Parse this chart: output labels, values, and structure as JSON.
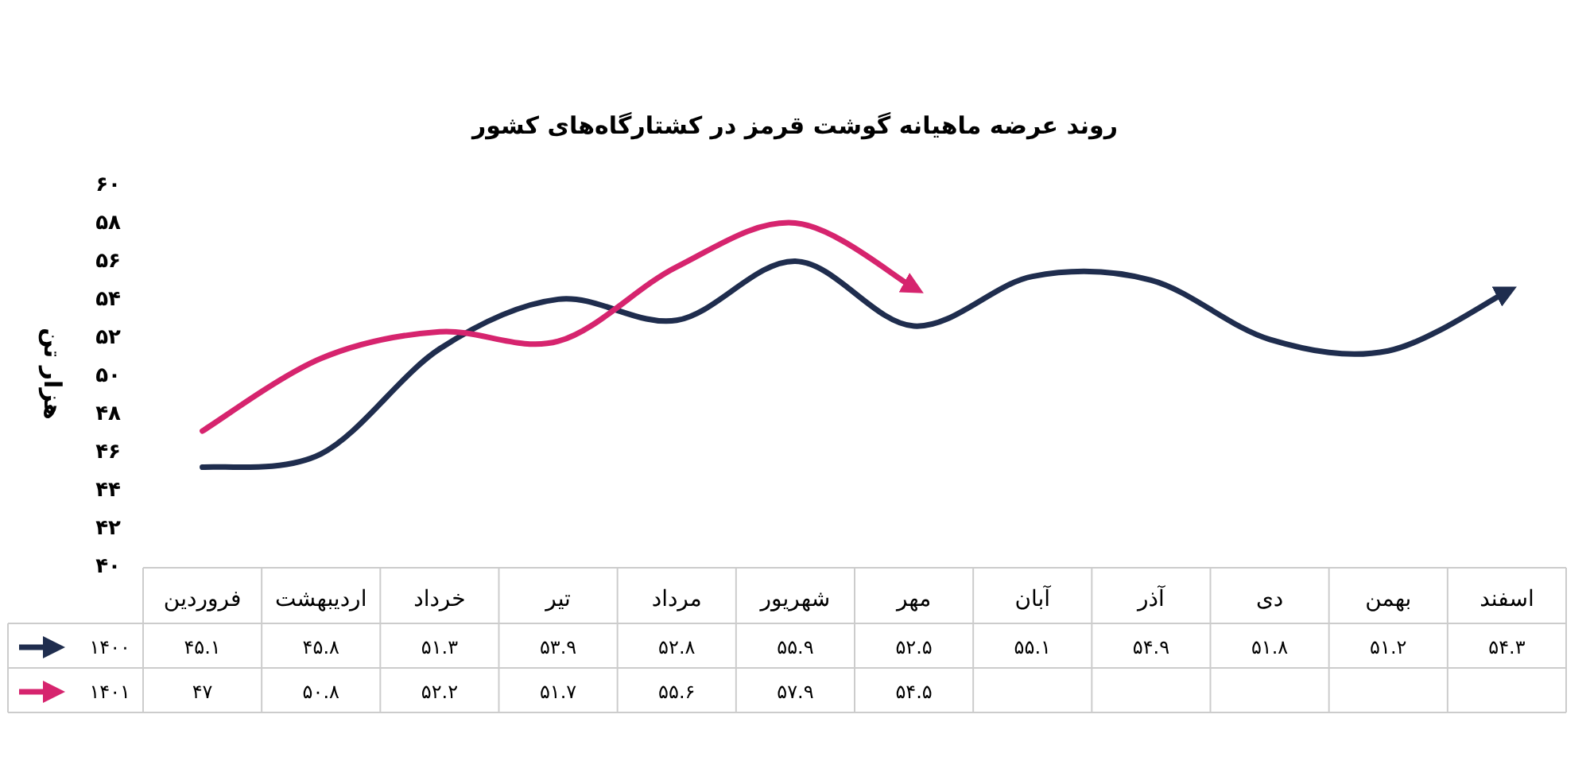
{
  "chart_data": {
    "type": "line",
    "title": "روند عرضه ماهیانه گوشت قرمز در کشتارگاه‌های کشور",
    "ylabel": "هزار تن",
    "categories": [
      "فروردین",
      "اردیبهشت",
      "خرداد",
      "تیر",
      "مرداد",
      "شهریور",
      "مهر",
      "آبان",
      "آذر",
      "دی",
      "بهمن",
      "اسفند"
    ],
    "series": [
      {
        "name": "۱۴۰۰",
        "color": "#1f2d4e",
        "values": [
          45.1,
          45.8,
          51.3,
          53.9,
          52.8,
          55.9,
          52.5,
          55.1,
          54.9,
          51.8,
          51.2,
          54.3
        ],
        "value_labels": [
          "۴۵.۱",
          "۴۵.۸",
          "۵۱.۳",
          "۵۳.۹",
          "۵۲.۸",
          "۵۵.۹",
          "۵۲.۵",
          "۵۵.۱",
          "۵۴.۹",
          "۵۱.۸",
          "۵۱.۲",
          "۵۴.۳"
        ]
      },
      {
        "name": "۱۴۰۱",
        "color": "#d6246e",
        "values": [
          47,
          50.8,
          52.2,
          51.7,
          55.6,
          57.9,
          54.5,
          null,
          null,
          null,
          null,
          null
        ],
        "value_labels": [
          "۴۷",
          "۵۰.۸",
          "۵۲.۲",
          "۵۱.۷",
          "۵۵.۶",
          "۵۷.۹",
          "۵۴.۵",
          null,
          null,
          null,
          null,
          null
        ]
      }
    ],
    "legend": "bottom left",
    "ylim": [
      40,
      60
    ],
    "yticks": [
      {
        "value": 40,
        "label": "۴۰"
      },
      {
        "value": 42,
        "label": "۴۲"
      },
      {
        "value": 44,
        "label": "۴۴"
      },
      {
        "value": 46,
        "label": "۴۶"
      },
      {
        "value": 48,
        "label": "۴۸"
      },
      {
        "value": 50,
        "label": "۵۰"
      },
      {
        "value": 52,
        "label": "۵۲"
      },
      {
        "value": 54,
        "label": "۵۴"
      },
      {
        "value": 56,
        "label": "۵۶"
      },
      {
        "value": 58,
        "label": "۵۸"
      },
      {
        "value": 60,
        "label": "۶۰"
      }
    ]
  }
}
